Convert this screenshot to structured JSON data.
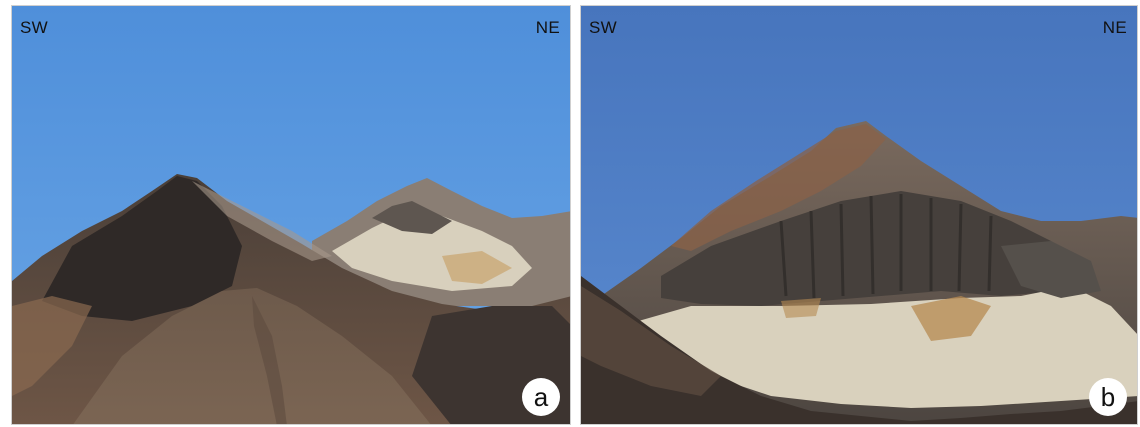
{
  "panels": [
    {
      "direction_left": "SW",
      "direction_right": "NE",
      "label": "a"
    },
    {
      "direction_left": "SW",
      "direction_right": "NE",
      "label": "b"
    }
  ],
  "colors": {
    "sky_a": "#5b99dd",
    "sky_b": "#4e7ec4",
    "rock_dark": "#3a332f",
    "rock_brown": "#6b5242",
    "ash_light": "#d9d1bd",
    "ochre": "#b58a52"
  }
}
